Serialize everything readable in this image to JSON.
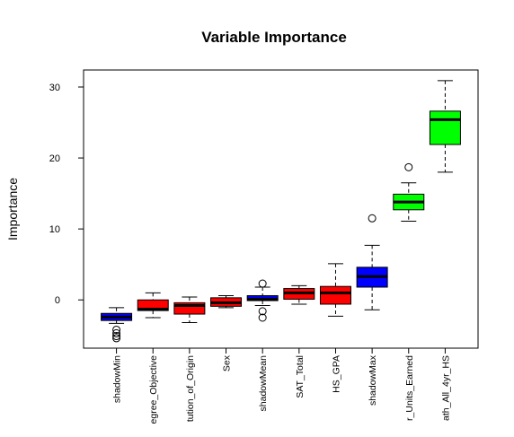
{
  "chart_data": {
    "type": "boxplot",
    "title": "Variable Importance",
    "y_label": "Importance",
    "categories": [
      "shadowMin",
      "egree_Objective",
      "tution_of_Origin",
      "Sex",
      "shadowMean",
      "SAT_Total",
      "HS_GPA",
      "shadowMax",
      "r_Units_Earned",
      "ath_All_4yr_HS"
    ],
    "boxes": [
      {
        "min": -3.3,
        "q1": -2.9,
        "median": -2.4,
        "q3": -1.9,
        "max": -1.1,
        "outliers": [
          -4.2,
          -4.7,
          -5.1,
          -5.4
        ],
        "color": "#0000ff"
      },
      {
        "min": -2.5,
        "q1": -1.5,
        "median": -1.3,
        "q3": 0.0,
        "max": 1.0,
        "outliers": [],
        "color": "#ff0000"
      },
      {
        "min": -3.2,
        "q1": -2.0,
        "median": -0.8,
        "q3": -0.4,
        "max": 0.4,
        "outliers": [],
        "color": "#ff0000"
      },
      {
        "min": -1.1,
        "q1": -0.9,
        "median": -0.4,
        "q3": 0.3,
        "max": 0.6,
        "outliers": [],
        "color": "#ff0000"
      },
      {
        "min": -0.8,
        "q1": -0.1,
        "median": 0.1,
        "q3": 0.6,
        "max": 1.8,
        "outliers": [
          2.3,
          -1.6,
          -2.5
        ],
        "color": "#0000ff"
      },
      {
        "min": -0.6,
        "q1": 0.1,
        "median": 1.0,
        "q3": 1.6,
        "max": 2.0,
        "outliers": [],
        "color": "#ff0000"
      },
      {
        "min": -2.3,
        "q1": -0.6,
        "median": 1.0,
        "q3": 1.9,
        "max": 5.1,
        "outliers": [],
        "color": "#ff0000"
      },
      {
        "min": -1.4,
        "q1": 1.8,
        "median": 3.3,
        "q3": 4.6,
        "max": 7.7,
        "outliers": [
          11.5
        ],
        "color": "#0000ff"
      },
      {
        "min": 11.1,
        "q1": 12.7,
        "median": 13.8,
        "q3": 14.9,
        "max": 16.5,
        "outliers": [
          18.7
        ],
        "color": "#00ff00"
      },
      {
        "min": 18.0,
        "q1": 21.9,
        "median": 25.4,
        "q3": 26.6,
        "max": 30.9,
        "outliers": [],
        "color": "#00ff00"
      }
    ],
    "ylim": [
      -6.8,
      32.4
    ],
    "yticks": [
      0,
      10,
      20,
      30
    ]
  }
}
